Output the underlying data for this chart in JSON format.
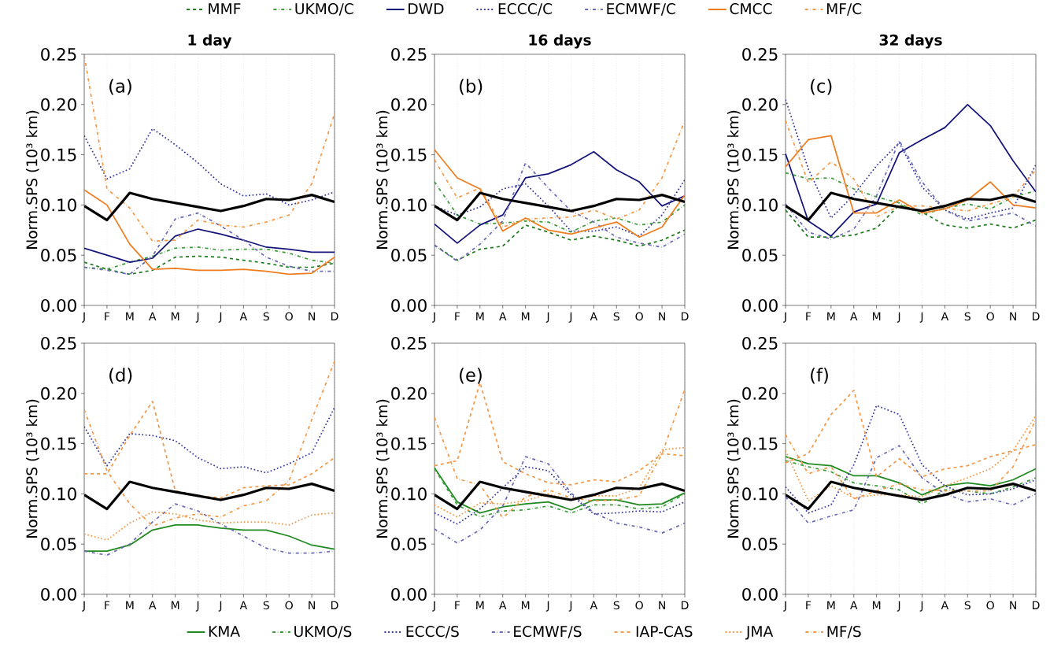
{
  "chart_data": [
    {
      "type": "line",
      "title": "1 day",
      "ylabel": "Norm.SPS (10³ km)",
      "annotations": [
        "(a)"
      ],
      "categories": [
        "J",
        "F",
        "M",
        "A",
        "M",
        "J",
        "J",
        "A",
        "S",
        "O",
        "N",
        "D"
      ],
      "ylim": [
        0,
        0.25
      ],
      "yticks": [
        {
          "value": 0,
          "label": "0.00"
        },
        {
          "value": 0.05,
          "label": "0.05"
        },
        {
          "value": 0.1,
          "label": "0.10"
        },
        {
          "value": 0.15,
          "label": "0.15"
        },
        {
          "value": 0.2,
          "label": "0.20"
        },
        {
          "value": 0.25,
          "label": "0.25"
        }
      ],
      "grid": "x",
      "series": [
        {
          "color": "#1e7b1e",
          "line_style": "dashed",
          "values": [
            0.043,
            0.036,
            0.031,
            0.035,
            0.048,
            0.049,
            0.048,
            0.045,
            0.042,
            0.038,
            0.038,
            0.042
          ]
        },
        {
          "color": "#3c9c3c",
          "line_style": "dashdot",
          "values": [
            0.038,
            0.036,
            0.043,
            0.049,
            0.057,
            0.058,
            0.055,
            0.056,
            0.056,
            0.052,
            0.045,
            0.042
          ]
        },
        {
          "color": "#14147a",
          "line_style": "solid",
          "values": [
            0.057,
            0.05,
            0.043,
            0.047,
            0.069,
            0.076,
            0.071,
            0.065,
            0.058,
            0.056,
            0.053,
            0.053
          ]
        },
        {
          "color": "#3a3a9a",
          "line_style": "dotted",
          "values": [
            0.169,
            0.126,
            0.136,
            0.176,
            0.16,
            0.142,
            0.121,
            0.109,
            0.111,
            0.1,
            0.105,
            0.113
          ]
        },
        {
          "color": "#6b6bb3",
          "line_style": "dashdot",
          "values": [
            0.038,
            0.035,
            0.031,
            0.049,
            0.086,
            0.092,
            0.079,
            0.065,
            0.048,
            0.039,
            0.034,
            0.034
          ]
        },
        {
          "color": "#ef7d1f",
          "line_style": "solid",
          "values": [
            0.115,
            0.1,
            0.061,
            0.036,
            0.037,
            0.035,
            0.035,
            0.036,
            0.034,
            0.031,
            0.032,
            0.048
          ]
        },
        {
          "color": "#f29a48",
          "line_style": "dashdot",
          "values": [
            0.249,
            0.116,
            0.097,
            0.064,
            0.065,
            0.085,
            0.08,
            0.078,
            0.083,
            0.09,
            0.121,
            0.191
          ]
        },
        {
          "color": "#000000",
          "line_style": "solid",
          "values": [
            0.099,
            0.085,
            0.112,
            0.106,
            0.102,
            0.098,
            0.094,
            0.099,
            0.106,
            0.105,
            0.11,
            0.103
          ]
        }
      ]
    },
    {
      "type": "line",
      "title": "16 days",
      "ylabel": "Norm.SPS (10³ km)",
      "annotations": [
        "(b)"
      ],
      "categories": [
        "J",
        "F",
        "M",
        "A",
        "M",
        "J",
        "J",
        "A",
        "S",
        "O",
        "N",
        "D"
      ],
      "ylim": [
        0,
        0.25
      ],
      "yticks": [
        {
          "value": 0,
          "label": "0.00"
        },
        {
          "value": 0.05,
          "label": "0.05"
        },
        {
          "value": 0.1,
          "label": "0.10"
        },
        {
          "value": 0.15,
          "label": "0.15"
        },
        {
          "value": 0.2,
          "label": "0.20"
        },
        {
          "value": 0.25,
          "label": "0.25"
        }
      ],
      "grid": "x",
      "legend": "top",
      "series": [
        {
          "name": "MMF",
          "color": "#1e7b1e",
          "line_style": "dashed",
          "values": [
            0.06,
            0.045,
            0.056,
            0.059,
            0.08,
            0.073,
            0.065,
            0.069,
            0.065,
            0.059,
            0.065,
            0.075
          ]
        },
        {
          "name": "UKMO/C",
          "color": "#3c9c3c",
          "line_style": "dashdot",
          "values": [
            0.123,
            0.09,
            0.081,
            0.082,
            0.084,
            0.083,
            0.073,
            0.084,
            0.087,
            0.08,
            0.083,
            0.1
          ]
        },
        {
          "name": "DWD",
          "color": "#14147a",
          "line_style": "solid",
          "values": [
            0.081,
            0.062,
            0.08,
            0.09,
            0.127,
            0.131,
            0.14,
            0.153,
            0.135,
            0.123,
            0.099,
            0.109
          ]
        },
        {
          "name": "ECCC/C",
          "color": "#3a3a9a",
          "line_style": "dotted",
          "values": [
            0.099,
            0.09,
            0.098,
            0.116,
            0.121,
            0.099,
            0.074,
            0.074,
            0.078,
            0.069,
            0.09,
            0.125
          ]
        },
        {
          "name": "ECMWF/C",
          "color": "#6b6bb3",
          "line_style": "dashdot",
          "values": [
            0.06,
            0.044,
            0.061,
            0.084,
            0.142,
            0.117,
            0.094,
            0.083,
            0.068,
            0.062,
            0.058,
            0.071
          ]
        },
        {
          "name": "CMCC",
          "color": "#ef7d1f",
          "line_style": "solid",
          "values": [
            0.155,
            0.127,
            0.116,
            0.074,
            0.087,
            0.075,
            0.071,
            0.077,
            0.083,
            0.068,
            0.078,
            0.11
          ]
        },
        {
          "name": "MF/C",
          "color": "#f29a48",
          "line_style": "dashdot",
          "values": [
            0.145,
            0.107,
            0.117,
            0.078,
            0.086,
            0.087,
            0.088,
            0.095,
            0.086,
            0.095,
            0.127,
            0.184
          ]
        },
        {
          "color": "#000000",
          "line_style": "solid",
          "values": [
            0.099,
            0.085,
            0.112,
            0.106,
            0.102,
            0.098,
            0.094,
            0.099,
            0.106,
            0.105,
            0.11,
            0.103
          ]
        }
      ]
    },
    {
      "type": "line",
      "title": "32 days",
      "ylabel": "Norm.SPS (10³ km)",
      "annotations": [
        "(c)"
      ],
      "categories": [
        "J",
        "F",
        "M",
        "A",
        "M",
        "J",
        "J",
        "A",
        "S",
        "O",
        "N",
        "D"
      ],
      "ylim": [
        0,
        0.25
      ],
      "yticks": [
        {
          "value": 0,
          "label": "0.00"
        },
        {
          "value": 0.05,
          "label": "0.05"
        },
        {
          "value": 0.1,
          "label": "0.10"
        },
        {
          "value": 0.15,
          "label": "0.15"
        },
        {
          "value": 0.2,
          "label": "0.20"
        },
        {
          "value": 0.25,
          "label": "0.25"
        }
      ],
      "grid": "x",
      "series": [
        {
          "color": "#1e7b1e",
          "line_style": "dashed",
          "values": [
            0.095,
            0.068,
            0.068,
            0.07,
            0.077,
            0.1,
            0.093,
            0.08,
            0.077,
            0.081,
            0.077,
            0.085
          ]
        },
        {
          "color": "#3c9c3c",
          "line_style": "dashdot",
          "values": [
            0.132,
            0.126,
            0.127,
            0.116,
            0.108,
            0.102,
            0.09,
            0.097,
            0.101,
            0.096,
            0.108,
            0.114
          ]
        },
        {
          "color": "#14147a",
          "line_style": "solid",
          "values": [
            0.151,
            0.084,
            0.069,
            0.093,
            0.101,
            0.152,
            0.165,
            0.177,
            0.2,
            0.179,
            0.144,
            0.113
          ]
        },
        {
          "color": "#3a3a9a",
          "line_style": "dotted",
          "values": [
            0.205,
            0.136,
            0.087,
            0.11,
            0.139,
            0.162,
            0.118,
            0.095,
            0.086,
            0.092,
            0.097,
            0.14
          ]
        },
        {
          "color": "#6b6bb3",
          "line_style": "dashdot",
          "values": [
            0.101,
            0.073,
            0.066,
            0.076,
            0.109,
            0.164,
            0.123,
            0.095,
            0.084,
            0.088,
            0.092,
            0.079
          ]
        },
        {
          "color": "#ef7d1f",
          "line_style": "solid",
          "values": [
            0.138,
            0.165,
            0.169,
            0.092,
            0.092,
            0.105,
            0.092,
            0.096,
            0.105,
            0.123,
            0.1,
            0.097
          ]
        },
        {
          "color": "#f29a48",
          "line_style": "dashdot",
          "values": [
            0.184,
            0.122,
            0.143,
            0.126,
            0.088,
            0.099,
            0.099,
            0.097,
            0.094,
            0.101,
            0.108,
            0.135
          ]
        },
        {
          "color": "#000000",
          "line_style": "solid",
          "values": [
            0.099,
            0.085,
            0.112,
            0.106,
            0.102,
            0.098,
            0.094,
            0.099,
            0.106,
            0.105,
            0.11,
            0.103
          ]
        }
      ]
    },
    {
      "type": "line",
      "ylabel": "Norm.SPS (10³ km)",
      "annotations": [
        "(d)"
      ],
      "categories": [
        "J",
        "F",
        "M",
        "A",
        "M",
        "J",
        "J",
        "A",
        "S",
        "O",
        "N",
        "D"
      ],
      "ylim": [
        0,
        0.25
      ],
      "yticks": [
        {
          "value": 0,
          "label": "0.00"
        },
        {
          "value": 0.05,
          "label": "0.05"
        },
        {
          "value": 0.1,
          "label": "0.10"
        },
        {
          "value": 0.15,
          "label": "0.15"
        },
        {
          "value": 0.2,
          "label": "0.20"
        },
        {
          "value": 0.25,
          "label": "0.25"
        }
      ],
      "grid": "x",
      "series": [
        {
          "color": "#1f8a1f",
          "line_style": "solid",
          "values": [
            0.043,
            0.043,
            0.049,
            0.064,
            0.069,
            0.069,
            0.066,
            0.064,
            0.064,
            0.058,
            0.049,
            0.045
          ]
        },
        {
          "color": "#3a3a9a",
          "line_style": "dotted",
          "values": [
            0.167,
            0.128,
            0.16,
            0.158,
            0.153,
            0.136,
            0.125,
            0.127,
            0.121,
            0.13,
            0.141,
            0.186
          ]
        },
        {
          "color": "#6b6bb3",
          "line_style": "dashdot",
          "values": [
            0.043,
            0.039,
            0.05,
            0.072,
            0.09,
            0.083,
            0.07,
            0.058,
            0.046,
            0.041,
            0.041,
            0.043
          ]
        },
        {
          "color": "#f29a48",
          "line_style": "dashed",
          "values": [
            0.12,
            0.12,
            0.158,
            0.192,
            0.103,
            0.098,
            0.096,
            0.106,
            0.108,
            0.109,
            0.12,
            0.136
          ]
        },
        {
          "color": "#f29a48",
          "line_style": "dotted",
          "values": [
            0.06,
            0.054,
            0.071,
            0.082,
            0.08,
            0.074,
            0.071,
            0.072,
            0.072,
            0.069,
            0.079,
            0.081
          ]
        },
        {
          "color": "#f29a48",
          "line_style": "dashdot",
          "values": [
            0.184,
            0.123,
            0.09,
            0.068,
            0.076,
            0.08,
            0.077,
            0.088,
            0.093,
            0.113,
            0.174,
            0.232
          ]
        },
        {
          "color": "#000000",
          "line_style": "solid",
          "values": [
            0.099,
            0.085,
            0.112,
            0.106,
            0.102,
            0.098,
            0.094,
            0.099,
            0.106,
            0.105,
            0.11,
            0.103
          ]
        }
      ]
    },
    {
      "type": "line",
      "ylabel": "Norm.SPS (10³ km)",
      "annotations": [
        "(e)"
      ],
      "categories": [
        "J",
        "F",
        "M",
        "A",
        "M",
        "J",
        "J",
        "A",
        "S",
        "O",
        "N",
        "D"
      ],
      "ylim": [
        0,
        0.25
      ],
      "yticks": [
        {
          "value": 0,
          "label": "0.00"
        },
        {
          "value": 0.05,
          "label": "0.05"
        },
        {
          "value": 0.1,
          "label": "0.10"
        },
        {
          "value": 0.15,
          "label": "0.15"
        },
        {
          "value": 0.2,
          "label": "0.20"
        },
        {
          "value": 0.25,
          "label": "0.25"
        }
      ],
      "grid": "x",
      "legend": "bottom",
      "series": [
        {
          "name": "KMA",
          "color": "#1f8a1f",
          "line_style": "solid",
          "values": [
            0.126,
            0.092,
            0.081,
            0.087,
            0.09,
            0.092,
            0.084,
            0.094,
            0.094,
            0.089,
            0.09,
            0.101
          ]
        },
        {
          "name": "UKMO/S",
          "color": "#3c9c3c",
          "line_style": "dashdot",
          "values": [
            0.125,
            0.089,
            0.077,
            0.083,
            0.084,
            0.088,
            0.081,
            0.089,
            0.089,
            0.085,
            0.087,
            0.1
          ]
        },
        {
          "name": "ECCC/S",
          "color": "#3a3a9a",
          "line_style": "dotted",
          "values": [
            0.081,
            0.07,
            0.085,
            0.106,
            0.127,
            0.123,
            0.099,
            0.08,
            0.081,
            0.083,
            0.082,
            0.092
          ]
        },
        {
          "name": "ECMWF/S",
          "color": "#6b6bb3",
          "line_style": "dashdot",
          "values": [
            0.065,
            0.051,
            0.064,
            0.088,
            0.137,
            0.13,
            0.101,
            0.081,
            0.071,
            0.067,
            0.061,
            0.071
          ]
        },
        {
          "name": "IAP-CAS",
          "color": "#f29a48",
          "line_style": "dashed",
          "values": [
            0.128,
            0.133,
            0.211,
            0.132,
            0.12,
            0.111,
            0.109,
            0.114,
            0.112,
            0.123,
            0.14,
            0.138
          ]
        },
        {
          "name": "JMA",
          "color": "#f29a48",
          "line_style": "dotted",
          "values": [
            0.089,
            0.077,
            0.091,
            0.09,
            0.093,
            0.1,
            0.094,
            0.098,
            0.098,
            0.106,
            0.144,
            0.146
          ]
        },
        {
          "name": "MF/S",
          "color": "#f29a48",
          "line_style": "dashdot",
          "values": [
            0.176,
            0.115,
            0.109,
            0.076,
            0.097,
            0.104,
            0.096,
            0.093,
            0.094,
            0.098,
            0.14,
            0.204
          ]
        },
        {
          "color": "#000000",
          "line_style": "solid",
          "values": [
            0.099,
            0.085,
            0.112,
            0.106,
            0.102,
            0.098,
            0.094,
            0.099,
            0.106,
            0.105,
            0.11,
            0.103
          ]
        }
      ]
    },
    {
      "type": "line",
      "ylabel": "Norm.SPS (10³ km)",
      "annotations": [
        "(f)"
      ],
      "categories": [
        "J",
        "F",
        "M",
        "A",
        "M",
        "J",
        "J",
        "A",
        "S",
        "O",
        "N",
        "D"
      ],
      "ylim": [
        0,
        0.25
      ],
      "yticks": [
        {
          "value": 0,
          "label": "0.00"
        },
        {
          "value": 0.05,
          "label": "0.05"
        },
        {
          "value": 0.1,
          "label": "0.10"
        },
        {
          "value": 0.15,
          "label": "0.15"
        },
        {
          "value": 0.2,
          "label": "0.20"
        },
        {
          "value": 0.25,
          "label": "0.25"
        }
      ],
      "grid": "x",
      "series": [
        {
          "color": "#1f8a1f",
          "line_style": "solid",
          "values": [
            0.137,
            0.13,
            0.128,
            0.118,
            0.118,
            0.111,
            0.099,
            0.108,
            0.111,
            0.108,
            0.114,
            0.125
          ]
        },
        {
          "color": "#3c9c3c",
          "line_style": "dashdot",
          "values": [
            0.133,
            0.127,
            0.122,
            0.111,
            0.108,
            0.104,
            0.09,
            0.104,
            0.103,
            0.1,
            0.107,
            0.116
          ]
        },
        {
          "color": "#3a3a9a",
          "line_style": "dotted",
          "values": [
            0.107,
            0.081,
            0.089,
            0.129,
            0.188,
            0.179,
            0.129,
            0.108,
            0.099,
            0.1,
            0.105,
            0.114
          ]
        },
        {
          "color": "#6b6bb3",
          "line_style": "dashdot",
          "values": [
            0.097,
            0.071,
            0.078,
            0.084,
            0.136,
            0.148,
            0.116,
            0.1,
            0.092,
            0.095,
            0.089,
            0.1
          ]
        },
        {
          "color": "#f29a48",
          "line_style": "dashed",
          "values": [
            0.131,
            0.14,
            0.179,
            0.203,
            0.117,
            0.135,
            0.117,
            0.125,
            0.128,
            0.137,
            0.143,
            0.149
          ]
        },
        {
          "color": "#f29a48",
          "line_style": "dotted",
          "values": [
            0.143,
            0.093,
            0.108,
            0.096,
            0.099,
            0.099,
            0.097,
            0.108,
            0.116,
            0.125,
            0.143,
            0.178
          ]
        },
        {
          "color": "#f29a48",
          "line_style": "dashdot",
          "values": [
            0.159,
            0.12,
            0.127,
            0.095,
            0.103,
            0.11,
            0.104,
            0.103,
            0.103,
            0.103,
            0.127,
            0.174
          ]
        },
        {
          "color": "#000000",
          "line_style": "solid",
          "values": [
            0.099,
            0.085,
            0.112,
            0.106,
            0.102,
            0.098,
            0.094,
            0.099,
            0.106,
            0.105,
            0.11,
            0.103
          ]
        }
      ]
    }
  ]
}
